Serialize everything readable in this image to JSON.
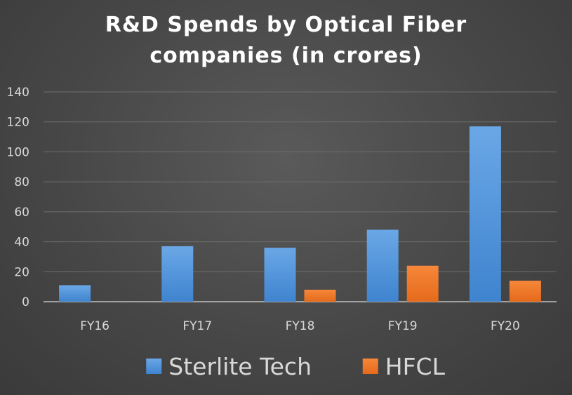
{
  "chart_data": {
    "type": "bar",
    "title_line1": "R&D Spends by Optical Fiber",
    "title_line2": "companies (in crores)",
    "categories": [
      "FY16",
      "FY17",
      "FY18",
      "FY19",
      "FY20"
    ],
    "series": [
      {
        "name": "Sterlite Tech",
        "values": [
          11,
          37,
          36,
          48,
          117
        ],
        "color": "#4a90d9"
      },
      {
        "name": "HFCL",
        "values": [
          0,
          0,
          8,
          24,
          14
        ],
        "color": "#f07a2a"
      }
    ],
    "yticks": [
      0,
      20,
      40,
      60,
      80,
      100,
      120,
      140
    ],
    "ylim": [
      0,
      140
    ],
    "grid": true,
    "legend_position": "bottom",
    "xlabel": "",
    "ylabel": ""
  }
}
